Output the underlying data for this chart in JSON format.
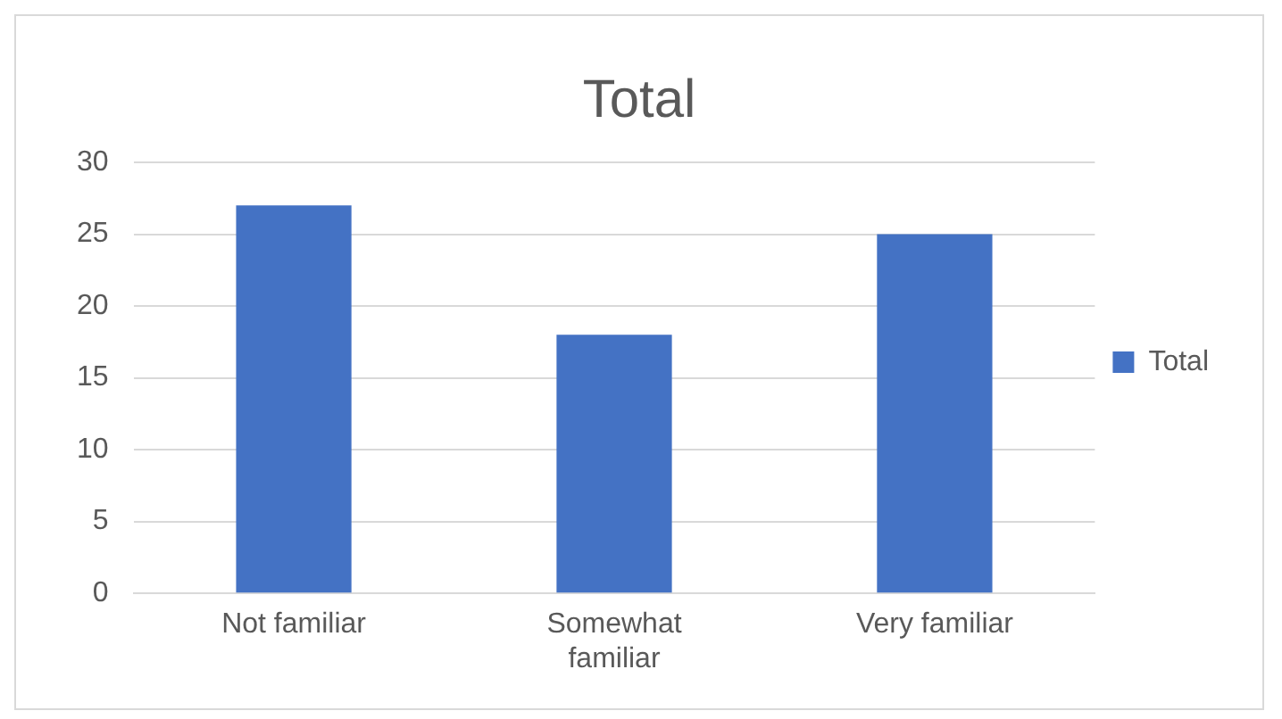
{
  "chart_data": {
    "type": "bar",
    "title": "Total",
    "categories": [
      "Not familiar",
      "Somewhat familiar",
      "Very familiar"
    ],
    "series": [
      {
        "name": "Total",
        "color": "#4472c4",
        "values": [
          27,
          18,
          25
        ]
      }
    ],
    "ylim": [
      0,
      30
    ],
    "yticks": [
      0,
      5,
      10,
      15,
      20,
      25,
      30
    ],
    "grid": "y",
    "legend": "right"
  }
}
